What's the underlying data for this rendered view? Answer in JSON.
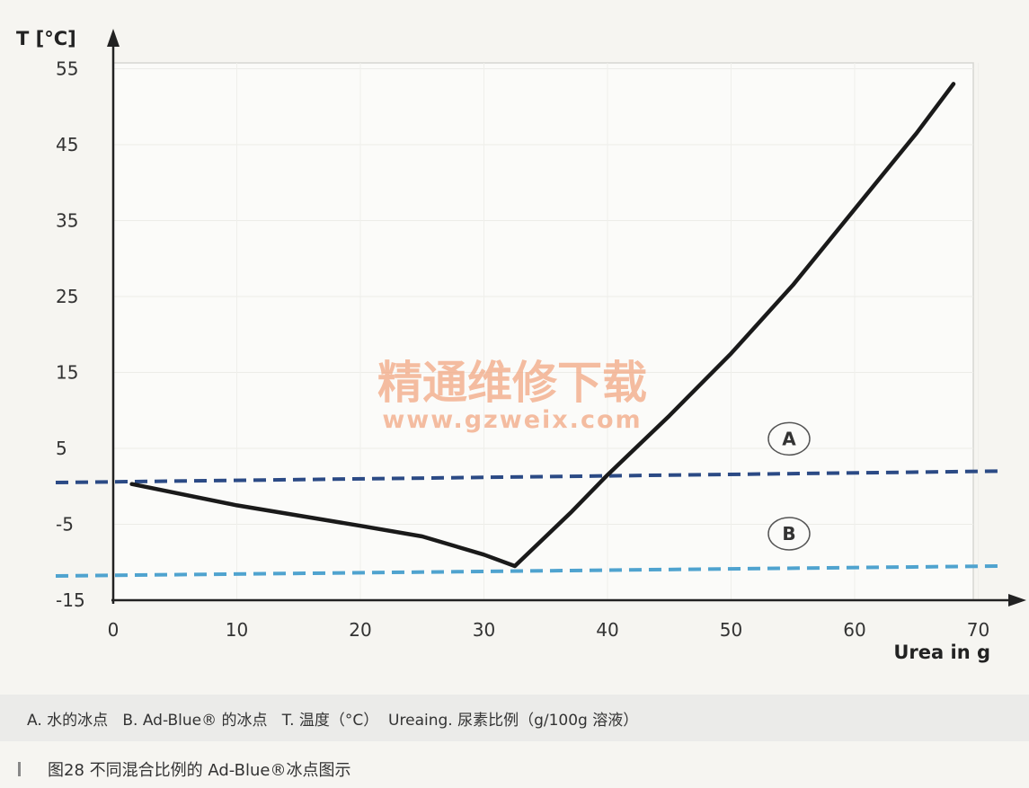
{
  "chart_data": {
    "type": "line",
    "y_axis_label": "T [°C]",
    "x_axis_label": "Urea in g",
    "x_ticks": [
      0,
      10,
      20,
      30,
      40,
      50,
      60,
      70
    ],
    "y_ticks": [
      55,
      45,
      35,
      25,
      15,
      5,
      -5,
      -15
    ],
    "xlim": [
      0,
      72
    ],
    "ylim": [
      -15,
      57
    ],
    "grid": true,
    "series": [
      {
        "x": [
          1.5,
          10,
          20,
          25,
          30,
          32.5,
          37,
          40,
          45,
          50,
          55,
          60,
          65,
          68
        ],
        "y": [
          0.3,
          -2.5,
          -5.2,
          -6.6,
          -9.0,
          -10.5,
          -3.5,
          1.5,
          9.3,
          17.5,
          26.5,
          36.5,
          46.5,
          53
        ],
        "color": "#1a1a1a"
      }
    ],
    "reference_lines": [
      {
        "label": "A",
        "y_start": 0.5,
        "y_end": 2.0,
        "x_start": 0,
        "x_end": 72,
        "color": "#2b4a85"
      },
      {
        "label": "B",
        "y_start": -11.8,
        "y_end": -10.5,
        "x_start": 0,
        "x_end": 72,
        "color": "#4fa3cf"
      }
    ]
  },
  "watermark": {
    "line1": "精通维修下载",
    "line2": "www.gzweix.com"
  },
  "legend_text": "A. 水的冰点   B. Ad-Blue® 的冰点   T. 温度（°C）  Ureaing. 尿素比例（g/100g 溶液）",
  "caption_text": "图28   不同混合比例的 Ad-Blue®冰点图示"
}
